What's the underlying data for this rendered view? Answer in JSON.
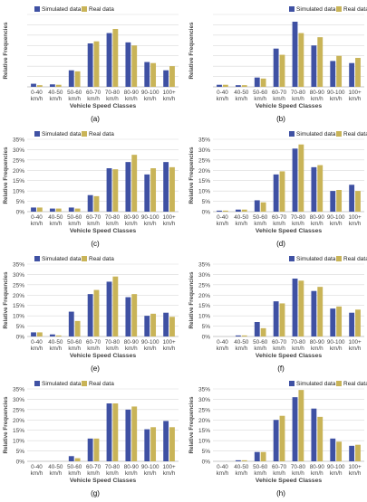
{
  "figure": {
    "panel_labels": [
      "(a)",
      "(b)",
      "(c)",
      "(d)",
      "(e)",
      "(f)",
      "(g)",
      "(h)"
    ]
  },
  "colors": {
    "simulated": "#3f51a3",
    "real": "#c9b458",
    "real_highlight": "#e89a4a",
    "grid": "#d9d9d9",
    "axis_text": "#444444"
  },
  "chart_data": [
    {
      "type": "bar",
      "panel": "(a)",
      "categories": [
        "0-40 km/h",
        "40-50 km/h",
        "50-60 km/h",
        "60-70 km/h",
        "70-80 km/h",
        "80-90 km/h",
        "90-100 km/h",
        "100+ km/h"
      ],
      "series": [
        {
          "name": "Simulated data",
          "values": [
            1.5,
            1.2,
            8,
            21,
            26,
            21.5,
            12,
            8
          ]
        },
        {
          "name": "Real data",
          "values": [
            0.8,
            1,
            7.5,
            22,
            28,
            20,
            11.5,
            10
          ]
        }
      ],
      "xlabel": "Vehicle Speed Classes",
      "ylabel": "Relative Frequencies",
      "ylim": [
        0,
        35
      ],
      "yticks": [],
      "grid": true,
      "legend": "top-left"
    },
    {
      "type": "bar",
      "panel": "(b)",
      "categories": [
        "0-40 km/h",
        "40-50 km/h",
        "50-60 km/h",
        "60-70 km/h",
        "70-80 km/h",
        "80-90 km/h",
        "90-100 km/h",
        "100+ km/h"
      ],
      "series": [
        {
          "name": "Simulated data",
          "values": [
            1,
            0.8,
            4.5,
            18.5,
            31.5,
            20,
            12.5,
            11.5
          ]
        },
        {
          "name": "Real data",
          "values": [
            1,
            0.8,
            4,
            15.5,
            26,
            24,
            15,
            14
          ]
        }
      ],
      "xlabel": "Vehicle Speed Classes",
      "ylabel": "Relative Frequencies",
      "ylim": [
        0,
        35
      ],
      "yticks": [],
      "grid": true,
      "legend": "top-right"
    },
    {
      "type": "bar",
      "panel": "(c)",
      "categories": [
        "0-40 km/h",
        "40-50 km/h",
        "50-60 km/h",
        "60-70 km/h",
        "70-80 km/h",
        "80-90 km/h",
        "90-100 km/h",
        "100+ km/h"
      ],
      "series": [
        {
          "name": "Simulated data",
          "values": [
            2,
            1.5,
            2,
            8,
            21,
            24,
            18,
            24
          ]
        },
        {
          "name": "Real data",
          "values": [
            2,
            1.5,
            1.5,
            7.5,
            20.5,
            27.5,
            21,
            21.5
          ]
        }
      ],
      "xlabel": "Vehicle Speed Classes",
      "ylabel": "Relative Frequencies",
      "ylim": [
        0,
        35
      ],
      "yticks": [
        "0%",
        "5%",
        "10%",
        "15%",
        "20%",
        "25%",
        "30%",
        "35%"
      ],
      "grid": true,
      "legend": "top-left"
    },
    {
      "type": "bar",
      "panel": "(d)",
      "categories": [
        "0-40 km/h",
        "40-50 km/h",
        "50-60 km/h",
        "60-70 km/h",
        "70-80 km/h",
        "80-90 km/h",
        "90-100 km/h",
        "100+ km/h"
      ],
      "series": [
        {
          "name": "Simulated data",
          "values": [
            0.5,
            1,
            5.5,
            18,
            30.5,
            21.5,
            10,
            13
          ]
        },
        {
          "name": "Real data",
          "values": [
            0.5,
            1,
            4.5,
            19.5,
            32.5,
            22.5,
            10.5,
            10
          ]
        }
      ],
      "xlabel": "Vehicle Speed Classes",
      "ylabel": "Relative Frequencies",
      "ylim": [
        0,
        35
      ],
      "yticks": [
        "0%",
        "5%",
        "10%",
        "15%",
        "20%",
        "25%",
        "30%",
        "35%"
      ],
      "grid": true,
      "legend": "top-right"
    },
    {
      "type": "bar",
      "panel": "(e)",
      "categories": [
        "0-40 km/h",
        "40-50 km/h",
        "50-60 km/h",
        "60-70 km/h",
        "70-80 km/h",
        "80-90 km/h",
        "90-100 km/h",
        "100+ km/h"
      ],
      "series": [
        {
          "name": "Simulated data",
          "values": [
            2,
            1,
            12,
            20.5,
            26.5,
            19,
            10,
            11.5
          ]
        },
        {
          "name": "Real data",
          "values": [
            2,
            0.5,
            7.5,
            22.5,
            29,
            20.5,
            11,
            9.5
          ]
        }
      ],
      "xlabel": "Vehicle Speed Classes",
      "ylabel": "Relative Frequencies",
      "ylim": [
        0,
        35
      ],
      "yticks": [
        "0%",
        "5%",
        "10%",
        "15%",
        "20%",
        "25%",
        "30%",
        "35%"
      ],
      "grid": true,
      "legend": "top-left"
    },
    {
      "type": "bar",
      "panel": "(f)",
      "categories": [
        "0-40 km/h",
        "40-50 km/h",
        "50-60 km/h",
        "60-70 km/h",
        "70-80 km/h",
        "80-90 km/h",
        "90-100 km/h",
        "100+ km/h"
      ],
      "series": [
        {
          "name": "Simulated data",
          "values": [
            0,
            0.5,
            7,
            17,
            28,
            22,
            13.5,
            11.5
          ]
        },
        {
          "name": "Real data",
          "values": [
            0,
            0.5,
            4,
            16,
            27,
            24,
            14.5,
            13
          ]
        }
      ],
      "xlabel": "Vehicle Speed Classes",
      "ylabel": "Relative Frequencies",
      "ylim": [
        0,
        35
      ],
      "yticks": [
        "0%",
        "5%",
        "10%",
        "15%",
        "20%",
        "25%",
        "30%",
        "35%"
      ],
      "grid": true,
      "legend": "top-right"
    },
    {
      "type": "bar",
      "panel": "(g)",
      "categories": [
        "0-40 km/h",
        "40-50 km/h",
        "50-60 km/h",
        "60-70 km/h",
        "70-80 km/h",
        "80-90 km/h",
        "90-100 km/h",
        "100+ km/h"
      ],
      "series": [
        {
          "name": "Simulated data",
          "values": [
            0,
            0,
            2.5,
            11,
            28,
            25,
            15.5,
            19.5
          ]
        },
        {
          "name": "Real data",
          "values": [
            0,
            0,
            1.5,
            11,
            28,
            26.5,
            16.5,
            16.5
          ]
        }
      ],
      "xlabel": "Vehicle Speed Classes",
      "ylabel": "Relative Frequencies",
      "ylim": [
        0,
        35
      ],
      "yticks": [
        "0%",
        "5%",
        "10%",
        "15%",
        "20%",
        "25%",
        "30%",
        "35%"
      ],
      "grid": true,
      "legend": "top-left"
    },
    {
      "type": "bar",
      "panel": "(h)",
      "categories": [
        "0-40 km/h",
        "40-50 km/h",
        "50-60 km/h",
        "60-70 km/h",
        "70-80 km/h",
        "80-90 km/h",
        "90-100 km/h",
        "100+ km/h"
      ],
      "series": [
        {
          "name": "Simulated data",
          "values": [
            0,
            0.5,
            4.5,
            20,
            31,
            25.5,
            11,
            7.5
          ]
        },
        {
          "name": "Real data",
          "values": [
            0,
            0.5,
            4.5,
            22,
            34.5,
            21.5,
            9.5,
            8
          ]
        }
      ],
      "xlabel": "Vehicle Speed Classes",
      "ylabel": "Relative Frequencies",
      "ylim": [
        0,
        35
      ],
      "yticks": [
        "0%",
        "5%",
        "10%",
        "15%",
        "20%",
        "25%",
        "30%",
        "35%"
      ],
      "grid": true,
      "legend": "top-right"
    }
  ]
}
